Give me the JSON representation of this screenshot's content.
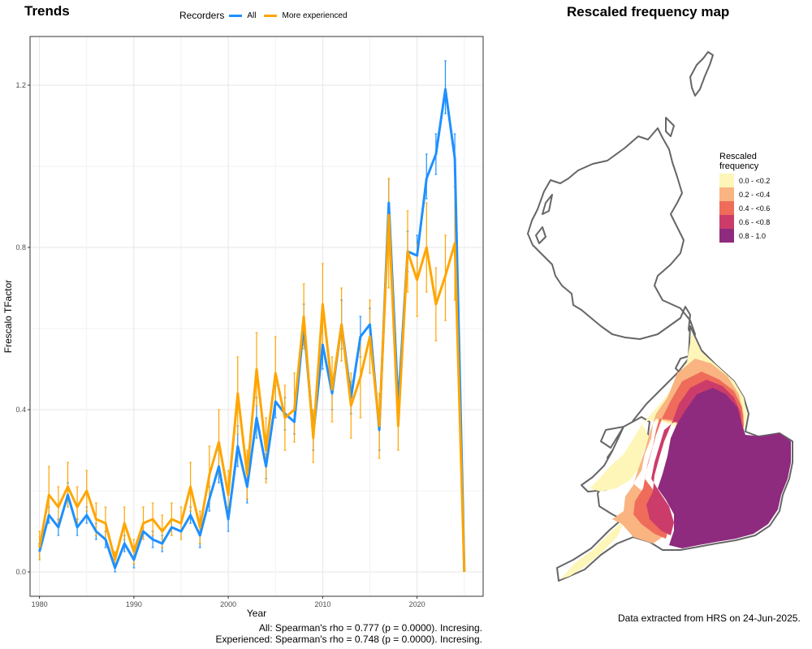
{
  "left_panel": {
    "title": "Trends"
  },
  "right_panel": {
    "title": "Rescaled frequency map"
  },
  "legend": {
    "title": "Recorders",
    "items": [
      {
        "label": "All",
        "color": "#1e90ff"
      },
      {
        "label": "More experienced",
        "color": "#ffa500"
      }
    ]
  },
  "stats": {
    "line1": "All: Spearman's rho = 0.777 (p = 0.0000). Incresing.",
    "line2": "Experienced: Spearman's rho = 0.748 (p = 0.0000). Incresing."
  },
  "map_legend": {
    "title": "Rescaled frequency",
    "items": [
      {
        "label": "0.0 - <0.2",
        "color": "#fdf6b8"
      },
      {
        "label": "0.2 - <0.4",
        "color": "#f9b482"
      },
      {
        "label": "0.4 - <0.6",
        "color": "#ef6c5a"
      },
      {
        "label": "0.6 - <0.8",
        "color": "#cc3c6a"
      },
      {
        "label": "0.8 - 1.0",
        "color": "#8e2b7e"
      }
    ]
  },
  "footer": "Data extracted from HRS on 24-Jun-2025.",
  "chart_data": {
    "type": "line",
    "title": "Trends",
    "xlabel": "Year",
    "ylabel": "Frescalo TFactor",
    "xlim": [
      1979,
      2027
    ],
    "ylim": [
      -0.06,
      1.32
    ],
    "xticks": [
      1980,
      1990,
      2000,
      2010,
      2020
    ],
    "yticks": [
      0.0,
      0.4,
      0.8,
      1.2
    ],
    "ytick_labels": [
      "0.0",
      "0.4",
      "0.8",
      "1.2"
    ],
    "grid": true,
    "legend_position": "top",
    "x": [
      1980,
      1981,
      1982,
      1983,
      1984,
      1985,
      1986,
      1987,
      1988,
      1989,
      1990,
      1991,
      1992,
      1993,
      1994,
      1995,
      1996,
      1997,
      1998,
      1999,
      2000,
      2001,
      2002,
      2003,
      2004,
      2005,
      2006,
      2007,
      2008,
      2009,
      2010,
      2011,
      2012,
      2013,
      2014,
      2015,
      2016,
      2017,
      2018,
      2019,
      2020,
      2021,
      2022,
      2023,
      2024,
      2025
    ],
    "series": [
      {
        "name": "All",
        "color": "#1e90ff",
        "values": [
          0.05,
          0.14,
          0.11,
          0.19,
          0.11,
          0.14,
          0.1,
          0.08,
          0.01,
          0.07,
          0.03,
          0.1,
          0.08,
          0.07,
          0.11,
          0.1,
          0.14,
          0.09,
          0.18,
          0.26,
          0.13,
          0.31,
          0.21,
          0.38,
          0.26,
          0.42,
          0.39,
          0.37,
          0.61,
          0.34,
          0.56,
          0.44,
          0.61,
          0.43,
          0.58,
          0.61,
          0.35,
          0.91,
          0.41,
          0.79,
          0.78,
          0.97,
          1.03,
          1.19,
          1.02,
          0.0
        ],
        "err_low": [
          0.03,
          0.12,
          0.09,
          0.16,
          0.09,
          0.12,
          0.08,
          0.06,
          0.0,
          0.05,
          0.01,
          0.08,
          0.06,
          0.05,
          0.09,
          0.08,
          0.12,
          0.06,
          0.15,
          0.22,
          0.1,
          0.26,
          0.17,
          0.33,
          0.23,
          0.38,
          0.35,
          0.34,
          0.56,
          0.3,
          0.5,
          0.4,
          0.55,
          0.39,
          0.53,
          0.57,
          0.3,
          0.85,
          0.37,
          0.74,
          0.73,
          0.92,
          0.98,
          1.13,
          0.95,
          0.0
        ],
        "err_high": [
          0.07,
          0.16,
          0.13,
          0.22,
          0.13,
          0.16,
          0.12,
          0.1,
          0.02,
          0.09,
          0.05,
          0.12,
          0.1,
          0.09,
          0.13,
          0.12,
          0.16,
          0.12,
          0.21,
          0.3,
          0.16,
          0.36,
          0.25,
          0.43,
          0.29,
          0.46,
          0.43,
          0.4,
          0.66,
          0.38,
          0.62,
          0.48,
          0.67,
          0.47,
          0.63,
          0.65,
          0.4,
          0.97,
          0.45,
          0.84,
          0.83,
          1.03,
          1.08,
          1.26,
          1.08,
          0.0
        ]
      },
      {
        "name": "More experienced",
        "color": "#ffa500",
        "values": [
          0.06,
          0.19,
          0.16,
          0.21,
          0.16,
          0.2,
          0.13,
          0.12,
          0.03,
          0.12,
          0.05,
          0.12,
          0.13,
          0.1,
          0.13,
          0.12,
          0.21,
          0.11,
          0.24,
          0.32,
          0.19,
          0.44,
          0.24,
          0.5,
          0.3,
          0.49,
          0.38,
          0.4,
          0.63,
          0.33,
          0.66,
          0.45,
          0.61,
          0.41,
          0.48,
          0.58,
          0.36,
          0.88,
          0.36,
          0.79,
          0.72,
          0.8,
          0.66,
          0.73,
          0.81,
          0.0
        ],
        "err_low": [
          0.03,
          0.14,
          0.12,
          0.16,
          0.11,
          0.15,
          0.09,
          0.08,
          0.01,
          0.08,
          0.02,
          0.08,
          0.09,
          0.06,
          0.09,
          0.08,
          0.15,
          0.07,
          0.17,
          0.24,
          0.14,
          0.34,
          0.18,
          0.41,
          0.22,
          0.41,
          0.3,
          0.32,
          0.55,
          0.27,
          0.56,
          0.37,
          0.52,
          0.33,
          0.38,
          0.49,
          0.28,
          0.7,
          0.3,
          0.69,
          0.63,
          0.69,
          0.57,
          0.62,
          0.67,
          0.0
        ],
        "err_high": [
          0.1,
          0.26,
          0.21,
          0.27,
          0.21,
          0.25,
          0.17,
          0.16,
          0.05,
          0.16,
          0.08,
          0.16,
          0.17,
          0.14,
          0.17,
          0.16,
          0.27,
          0.15,
          0.31,
          0.4,
          0.25,
          0.53,
          0.3,
          0.59,
          0.38,
          0.58,
          0.46,
          0.49,
          0.71,
          0.4,
          0.76,
          0.53,
          0.7,
          0.49,
          0.58,
          0.67,
          0.44,
          0.97,
          0.42,
          0.89,
          0.81,
          0.91,
          0.75,
          0.83,
          0.95,
          0.0
        ]
      }
    ]
  }
}
